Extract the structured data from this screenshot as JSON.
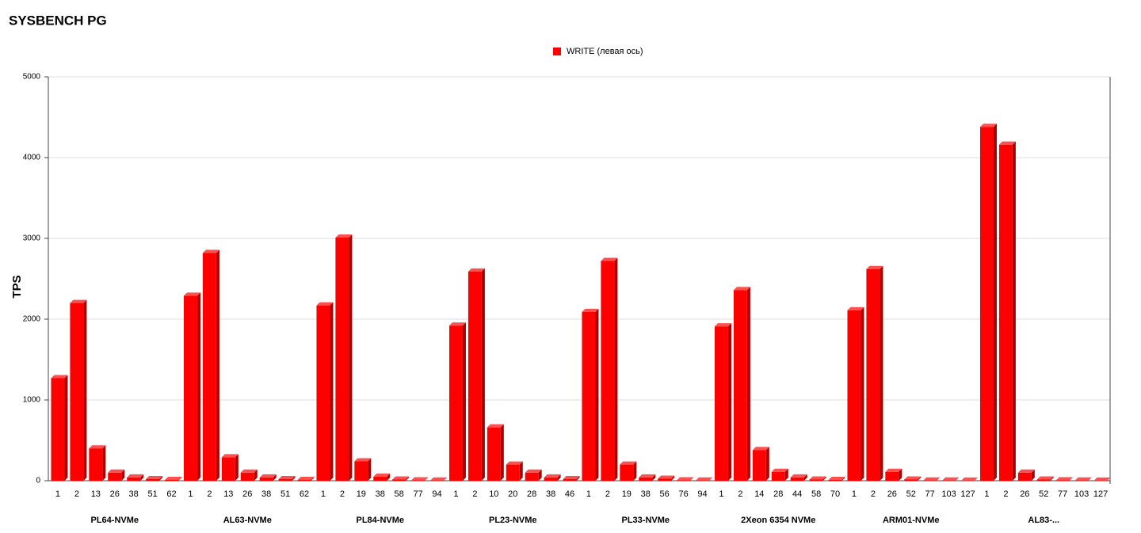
{
  "chart_data": {
    "type": "bar",
    "title": "SYSBENCH PG",
    "ylabel": "TPS",
    "series": [
      {
        "name": "WRITE (левая ось)",
        "color": "#ff0000"
      }
    ],
    "legend": "top",
    "groups": [
      {
        "name": "PL64-NVMe",
        "categories": [
          "1",
          "2",
          "13",
          "26",
          "38",
          "51",
          "62"
        ],
        "values": [
          1270,
          2200,
          400,
          100,
          40,
          20,
          10
        ]
      },
      {
        "name": "AL63-NVMe",
        "categories": [
          "1",
          "2",
          "13",
          "26",
          "38",
          "51",
          "62"
        ],
        "values": [
          2290,
          2820,
          290,
          100,
          40,
          20,
          10
        ]
      },
      {
        "name": "PL84-NVMe",
        "categories": [
          "1",
          "2",
          "19",
          "38",
          "58",
          "77",
          "94"
        ],
        "values": [
          2170,
          3010,
          240,
          50,
          15,
          5,
          3
        ]
      },
      {
        "name": "PL23-NVMe",
        "categories": [
          "1",
          "2",
          "10",
          "20",
          "28",
          "38",
          "46"
        ],
        "values": [
          1920,
          2590,
          660,
          200,
          100,
          40,
          20
        ]
      },
      {
        "name": "PL33-NVMe",
        "categories": [
          "1",
          "2",
          "19",
          "38",
          "56",
          "76",
          "94"
        ],
        "values": [
          2090,
          2720,
          200,
          40,
          25,
          5,
          2
        ]
      },
      {
        "name": "2Xeon 6354 NVMe",
        "categories": [
          "1",
          "2",
          "14",
          "28",
          "44",
          "58",
          "70"
        ],
        "values": [
          1910,
          2360,
          380,
          110,
          40,
          15,
          10
        ]
      },
      {
        "name": "ARM01-NVMe",
        "categories": [
          "1",
          "2",
          "26",
          "52",
          "77",
          "103",
          "127"
        ],
        "values": [
          2110,
          2620,
          110,
          15,
          3,
          2,
          1
        ]
      },
      {
        "name": "AL83-...",
        "categories": [
          "1",
          "2",
          "26",
          "52",
          "77",
          "103",
          "127"
        ],
        "values": [
          4380,
          4160,
          100,
          15,
          5,
          2,
          1
        ]
      }
    ],
    "ylim": [
      0,
      5000
    ],
    "yticks": [
      0,
      1000,
      2000,
      3000,
      4000,
      5000
    ],
    "grid": true
  }
}
